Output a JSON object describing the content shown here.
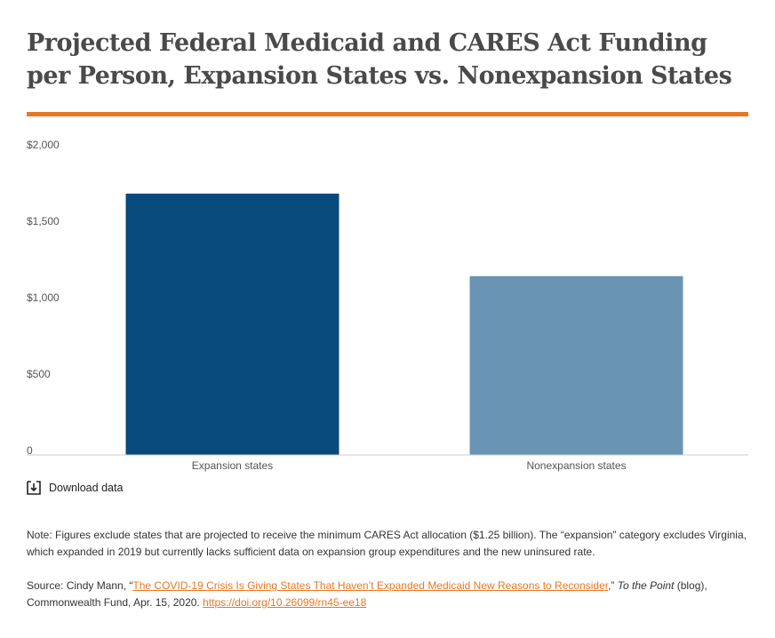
{
  "header": {
    "title": "Projected Federal Medicaid and CARES Act Funding per Person, Expansion States vs. Nonexpansion States"
  },
  "chart_data": {
    "type": "bar",
    "categories": [
      "Expansion states",
      "Nonexpansion states"
    ],
    "values": [
      1710,
      1170
    ],
    "colors": [
      "#084a7c",
      "#6994b4"
    ],
    "ylim": [
      0,
      2000
    ],
    "yticks": [
      0,
      {
        "value": 500,
        "label": "$500"
      },
      {
        "value": 1000,
        "label": "$1,000"
      },
      {
        "value": 1500,
        "label": "$1,500"
      },
      {
        "value": 2000,
        "label": "$2,000"
      }
    ],
    "grid": false
  },
  "download": "Download data",
  "note": "Note: Figures exclude states that are projected to receive the minimum CARES Act allocation ($1.25 billion). The “expansion” category excludes Virginia, which expanded in 2019 but currently lacks sufficient data on expansion group expenditures and the new uninsured rate.",
  "source": {
    "prefix": "Source: Cindy Mann, “",
    "link": "The COVID-19 Crisis Is Giving States That Haven’t Expanded Medicaid New Reasons to Reconsider",
    "mid": ",” ",
    "blog": "To the Point",
    "after": " (blog), Commonwealth Fund, Apr. 15, 2020. ",
    "doi": "https://doi.org/10.26099/rn45-ee18"
  }
}
